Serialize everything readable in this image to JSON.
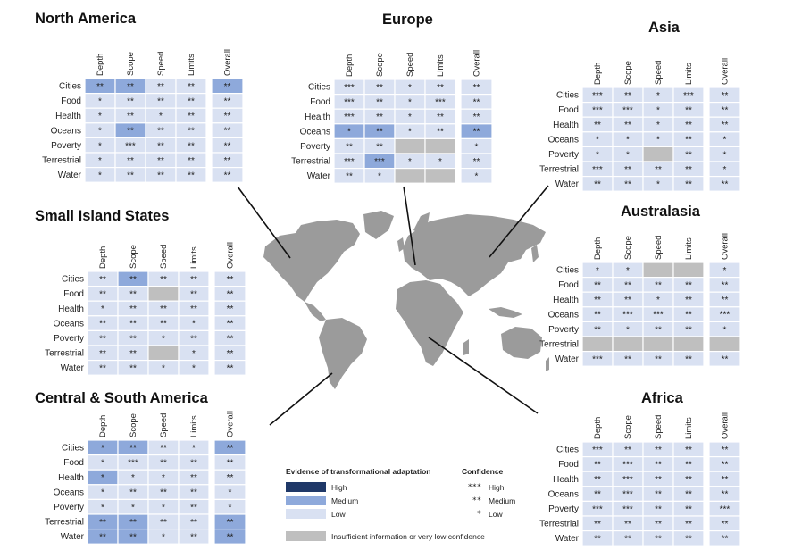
{
  "colors": {
    "High": "#1f3868",
    "Medium": "#8ea9db",
    "Low": "#d9e1f2",
    "Insufficient": "#bfbfbf",
    "map": "#9b9b9b"
  },
  "legend": {
    "evidence_title": "Evidence of transformational adaptation",
    "levels": [
      "High",
      "Medium",
      "Low"
    ],
    "confidence_title": "Confidence",
    "confidence": [
      {
        "stars": "***",
        "label": "High"
      },
      {
        "stars": "**",
        "label": "Medium"
      },
      {
        "stars": "*",
        "label": "Low"
      }
    ],
    "insufficient": "Insufficient information or very low confidence"
  },
  "chart_data": {
    "type": "heatmap",
    "columns": [
      "Depth",
      "Scope",
      "Speed",
      "Limits"
    ],
    "overall_label": "Overall",
    "rows": [
      "Cities",
      "Food",
      "Health",
      "Oceans",
      "Poverty",
      "Terrestrial",
      "Water"
    ],
    "regions": [
      {
        "name": "North America",
        "cells": [
          [
            [
              "**",
              "M"
            ],
            [
              "**",
              "M"
            ],
            [
              "**",
              "L"
            ],
            [
              "**",
              "L"
            ]
          ],
          [
            [
              "*",
              "L"
            ],
            [
              "**",
              "L"
            ],
            [
              "**",
              "L"
            ],
            [
              "**",
              "L"
            ]
          ],
          [
            [
              "*",
              "L"
            ],
            [
              "**",
              "L"
            ],
            [
              "*",
              "L"
            ],
            [
              "**",
              "L"
            ]
          ],
          [
            [
              "*",
              "L"
            ],
            [
              "**",
              "M"
            ],
            [
              "**",
              "L"
            ],
            [
              "**",
              "L"
            ]
          ],
          [
            [
              "*",
              "L"
            ],
            [
              "***",
              "L"
            ],
            [
              "**",
              "L"
            ],
            [
              "**",
              "L"
            ]
          ],
          [
            [
              "*",
              "L"
            ],
            [
              "**",
              "L"
            ],
            [
              "**",
              "L"
            ],
            [
              "**",
              "L"
            ]
          ],
          [
            [
              "*",
              "L"
            ],
            [
              "**",
              "L"
            ],
            [
              "**",
              "L"
            ],
            [
              "**",
              "L"
            ]
          ]
        ],
        "overall": [
          [
            "**",
            "M"
          ],
          [
            "**",
            "L"
          ],
          [
            "**",
            "L"
          ],
          [
            "**",
            "L"
          ],
          [
            "**",
            "L"
          ],
          [
            "**",
            "L"
          ],
          [
            "**",
            "L"
          ]
        ]
      },
      {
        "name": "Europe",
        "cells": [
          [
            [
              "***",
              "L"
            ],
            [
              "**",
              "L"
            ],
            [
              "*",
              "L"
            ],
            [
              "**",
              "L"
            ]
          ],
          [
            [
              "***",
              "L"
            ],
            [
              "**",
              "L"
            ],
            [
              "*",
              "L"
            ],
            [
              "***",
              "L"
            ]
          ],
          [
            [
              "***",
              "L"
            ],
            [
              "**",
              "L"
            ],
            [
              "*",
              "L"
            ],
            [
              "**",
              "L"
            ]
          ],
          [
            [
              "*",
              "M"
            ],
            [
              "**",
              "M"
            ],
            [
              "*",
              "L"
            ],
            [
              "**",
              "L"
            ]
          ],
          [
            [
              "**",
              "L"
            ],
            [
              "**",
              "L"
            ],
            [
              "",
              "I"
            ],
            [
              "",
              "I"
            ]
          ],
          [
            [
              "***",
              "L"
            ],
            [
              "***",
              "M"
            ],
            [
              "*",
              "L"
            ],
            [
              "*",
              "L"
            ]
          ],
          [
            [
              "**",
              "L"
            ],
            [
              "*",
              "L"
            ],
            [
              "",
              "I"
            ],
            [
              "",
              "I"
            ]
          ]
        ],
        "overall": [
          [
            "**",
            "L"
          ],
          [
            "**",
            "L"
          ],
          [
            "**",
            "L"
          ],
          [
            "**",
            "M"
          ],
          [
            "*",
            "L"
          ],
          [
            "**",
            "L"
          ],
          [
            "*",
            "L"
          ]
        ]
      },
      {
        "name": "Asia",
        "cells": [
          [
            [
              "***",
              "L"
            ],
            [
              "**",
              "L"
            ],
            [
              "*",
              "L"
            ],
            [
              "***",
              "L"
            ]
          ],
          [
            [
              "***",
              "L"
            ],
            [
              "***",
              "L"
            ],
            [
              "*",
              "L"
            ],
            [
              "**",
              "L"
            ]
          ],
          [
            [
              "**",
              "L"
            ],
            [
              "**",
              "L"
            ],
            [
              "*",
              "L"
            ],
            [
              "**",
              "L"
            ]
          ],
          [
            [
              "*",
              "L"
            ],
            [
              "*",
              "L"
            ],
            [
              "*",
              "L"
            ],
            [
              "**",
              "L"
            ]
          ],
          [
            [
              "*",
              "L"
            ],
            [
              "*",
              "L"
            ],
            [
              "",
              "I"
            ],
            [
              "**",
              "L"
            ]
          ],
          [
            [
              "***",
              "L"
            ],
            [
              "**",
              "L"
            ],
            [
              "**",
              "L"
            ],
            [
              "**",
              "L"
            ]
          ],
          [
            [
              "**",
              "L"
            ],
            [
              "**",
              "L"
            ],
            [
              "*",
              "L"
            ],
            [
              "**",
              "L"
            ]
          ]
        ],
        "overall": [
          [
            "**",
            "L"
          ],
          [
            "**",
            "L"
          ],
          [
            "**",
            "L"
          ],
          [
            "*",
            "L"
          ],
          [
            "*",
            "L"
          ],
          [
            "*",
            "L"
          ],
          [
            "**",
            "L"
          ]
        ]
      },
      {
        "name": "Small Island States",
        "cells": [
          [
            [
              "**",
              "L"
            ],
            [
              "**",
              "M"
            ],
            [
              "**",
              "L"
            ],
            [
              "**",
              "L"
            ]
          ],
          [
            [
              "**",
              "L"
            ],
            [
              "**",
              "L"
            ],
            [
              "",
              "I"
            ],
            [
              "**",
              "L"
            ]
          ],
          [
            [
              "*",
              "L"
            ],
            [
              "**",
              "L"
            ],
            [
              "**",
              "L"
            ],
            [
              "**",
              "L"
            ]
          ],
          [
            [
              "**",
              "L"
            ],
            [
              "**",
              "L"
            ],
            [
              "**",
              "L"
            ],
            [
              "*",
              "L"
            ]
          ],
          [
            [
              "**",
              "L"
            ],
            [
              "**",
              "L"
            ],
            [
              "*",
              "L"
            ],
            [
              "**",
              "L"
            ]
          ],
          [
            [
              "**",
              "L"
            ],
            [
              "**",
              "L"
            ],
            [
              "",
              "I"
            ],
            [
              "*",
              "L"
            ]
          ],
          [
            [
              "**",
              "L"
            ],
            [
              "**",
              "L"
            ],
            [
              "*",
              "L"
            ],
            [
              "*",
              "L"
            ]
          ]
        ],
        "overall": [
          [
            "**",
            "L"
          ],
          [
            "**",
            "L"
          ],
          [
            "**",
            "L"
          ],
          [
            "**",
            "L"
          ],
          [
            "**",
            "L"
          ],
          [
            "**",
            "L"
          ],
          [
            "**",
            "L"
          ]
        ]
      },
      {
        "name": "Australasia",
        "cells": [
          [
            [
              "*",
              "L"
            ],
            [
              "*",
              "L"
            ],
            [
              "",
              "I"
            ],
            [
              "",
              "I"
            ]
          ],
          [
            [
              "**",
              "L"
            ],
            [
              "**",
              "L"
            ],
            [
              "**",
              "L"
            ],
            [
              "**",
              "L"
            ]
          ],
          [
            [
              "**",
              "L"
            ],
            [
              "**",
              "L"
            ],
            [
              "*",
              "L"
            ],
            [
              "**",
              "L"
            ]
          ],
          [
            [
              "**",
              "L"
            ],
            [
              "***",
              "L"
            ],
            [
              "***",
              "L"
            ],
            [
              "**",
              "L"
            ]
          ],
          [
            [
              "**",
              "L"
            ],
            [
              "*",
              "L"
            ],
            [
              "**",
              "L"
            ],
            [
              "**",
              "L"
            ]
          ],
          [
            [
              "",
              "I"
            ],
            [
              "",
              "I"
            ],
            [
              "",
              "I"
            ],
            [
              "",
              "I"
            ]
          ],
          [
            [
              "***",
              "L"
            ],
            [
              "**",
              "L"
            ],
            [
              "**",
              "L"
            ],
            [
              "**",
              "L"
            ]
          ]
        ],
        "overall": [
          [
            "*",
            "L"
          ],
          [
            "**",
            "L"
          ],
          [
            "**",
            "L"
          ],
          [
            "***",
            "L"
          ],
          [
            "*",
            "L"
          ],
          [
            "",
            "I"
          ],
          [
            "**",
            "L"
          ]
        ]
      },
      {
        "name": "Central & South America",
        "cells": [
          [
            [
              "*",
              "M"
            ],
            [
              "**",
              "M"
            ],
            [
              "**",
              "L"
            ],
            [
              "*",
              "L"
            ]
          ],
          [
            [
              "*",
              "L"
            ],
            [
              "***",
              "L"
            ],
            [
              "**",
              "L"
            ],
            [
              "**",
              "L"
            ]
          ],
          [
            [
              "*",
              "M"
            ],
            [
              "*",
              "L"
            ],
            [
              "*",
              "L"
            ],
            [
              "**",
              "L"
            ]
          ],
          [
            [
              "*",
              "L"
            ],
            [
              "**",
              "L"
            ],
            [
              "**",
              "L"
            ],
            [
              "**",
              "L"
            ]
          ],
          [
            [
              "*",
              "L"
            ],
            [
              "*",
              "L"
            ],
            [
              "*",
              "L"
            ],
            [
              "**",
              "L"
            ]
          ],
          [
            [
              "**",
              "M"
            ],
            [
              "**",
              "M"
            ],
            [
              "**",
              "L"
            ],
            [
              "**",
              "L"
            ]
          ],
          [
            [
              "**",
              "M"
            ],
            [
              "**",
              "M"
            ],
            [
              "*",
              "L"
            ],
            [
              "**",
              "L"
            ]
          ]
        ],
        "overall": [
          [
            "**",
            "M"
          ],
          [
            "**",
            "L"
          ],
          [
            "**",
            "L"
          ],
          [
            "*",
            "L"
          ],
          [
            "*",
            "L"
          ],
          [
            "**",
            "M"
          ],
          [
            "**",
            "M"
          ]
        ]
      },
      {
        "name": "Africa",
        "cells": [
          [
            [
              "***",
              "L"
            ],
            [
              "**",
              "L"
            ],
            [
              "**",
              "L"
            ],
            [
              "**",
              "L"
            ]
          ],
          [
            [
              "**",
              "L"
            ],
            [
              "***",
              "L"
            ],
            [
              "**",
              "L"
            ],
            [
              "**",
              "L"
            ]
          ],
          [
            [
              "**",
              "L"
            ],
            [
              "***",
              "L"
            ],
            [
              "**",
              "L"
            ],
            [
              "**",
              "L"
            ]
          ],
          [
            [
              "**",
              "L"
            ],
            [
              "***",
              "L"
            ],
            [
              "**",
              "L"
            ],
            [
              "**",
              "L"
            ]
          ],
          [
            [
              "***",
              "L"
            ],
            [
              "***",
              "L"
            ],
            [
              "**",
              "L"
            ],
            [
              "**",
              "L"
            ]
          ],
          [
            [
              "**",
              "L"
            ],
            [
              "**",
              "L"
            ],
            [
              "**",
              "L"
            ],
            [
              "**",
              "L"
            ]
          ],
          [
            [
              "**",
              "L"
            ],
            [
              "**",
              "L"
            ],
            [
              "**",
              "L"
            ],
            [
              "**",
              "L"
            ]
          ]
        ],
        "overall": [
          [
            "**",
            "L"
          ],
          [
            "**",
            "L"
          ],
          [
            "**",
            "L"
          ],
          [
            "**",
            "L"
          ],
          [
            "***",
            "L"
          ],
          [
            "**",
            "L"
          ],
          [
            "**",
            "L"
          ]
        ]
      }
    ]
  }
}
